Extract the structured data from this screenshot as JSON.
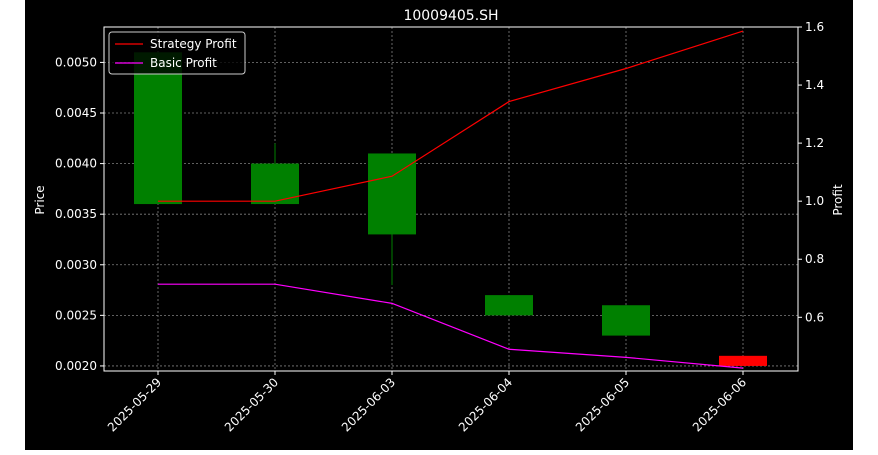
{
  "chart_data": {
    "type": "candlestick",
    "title": "10009405.SH",
    "xlabel": "",
    "ylabel_left": "Price",
    "ylabel_right": "Profit",
    "categories": [
      "2025-05-29",
      "2025-05-30",
      "2025-06-03",
      "2025-06-04",
      "2025-06-05",
      "2025-06-06"
    ],
    "ylim_left": [
      0.00195,
      0.00535
    ],
    "ylim_right": [
      0.415,
      1.6
    ],
    "left_ticks": [
      "0.0020",
      "0.0025",
      "0.0030",
      "0.0035",
      "0.0040",
      "0.0045",
      "0.0050"
    ],
    "left_tick_values": [
      0.002,
      0.0025,
      0.003,
      0.0035,
      0.004,
      0.0045,
      0.005
    ],
    "right_ticks": [
      "0.6",
      "0.8",
      "1.0",
      "1.2",
      "1.4",
      "1.6"
    ],
    "right_tick_values": [
      0.6,
      0.8,
      1.0,
      1.2,
      1.4,
      1.6
    ],
    "grid": true,
    "legend_position": "top-left",
    "candles": [
      {
        "open": 0.0036,
        "close": 0.0051,
        "high": 0.0051,
        "low": 0.0036,
        "color": "#008000"
      },
      {
        "open": 0.0036,
        "close": 0.004,
        "high": 0.0042,
        "low": 0.0036,
        "color": "#008000"
      },
      {
        "open": 0.0033,
        "close": 0.0041,
        "high": 0.0041,
        "low": 0.0028,
        "color": "#008000"
      },
      {
        "open": 0.0025,
        "close": 0.0027,
        "high": 0.0027,
        "low": 0.0025,
        "color": "#008000"
      },
      {
        "open": 0.0023,
        "close": 0.0026,
        "high": 0.0026,
        "low": 0.0023,
        "color": "#008000"
      },
      {
        "open": 0.0021,
        "close": 0.002,
        "high": 0.0021,
        "low": 0.002,
        "color": "#ff0000"
      }
    ],
    "series": [
      {
        "name": "Strategy Profit",
        "axis": "right",
        "color": "#ff0000",
        "values": [
          1.0,
          1.0,
          1.086,
          1.343,
          1.457,
          1.586
        ]
      },
      {
        "name": "Basic Profit",
        "axis": "right",
        "color": "#ff00ff",
        "values": [
          0.714,
          0.714,
          0.648,
          0.49,
          0.462,
          0.425
        ]
      }
    ],
    "colors": {
      "background": "#000000",
      "axes": "#ffffff",
      "grid": "#808080"
    }
  }
}
